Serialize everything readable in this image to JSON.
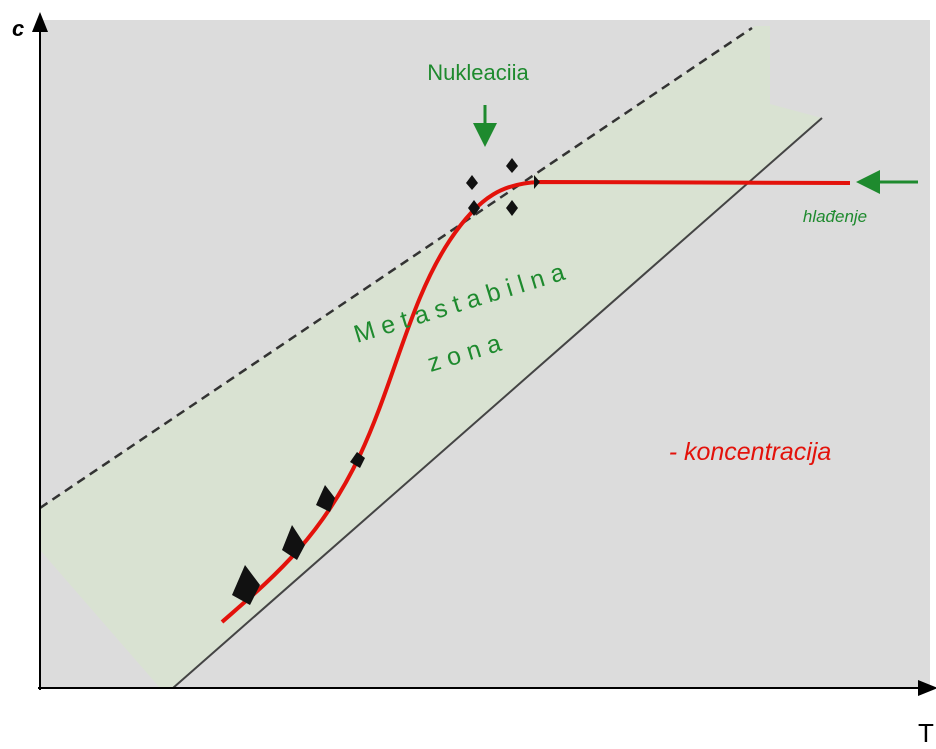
{
  "axes": {
    "y_label": "c",
    "x_label": "T"
  },
  "annotations": {
    "nucleation": "Nukleaciia",
    "cooling": "hlađenje",
    "zone_line1": "Metastabilna",
    "zone_line2": "zona",
    "legend": "- koncentracija"
  }
}
